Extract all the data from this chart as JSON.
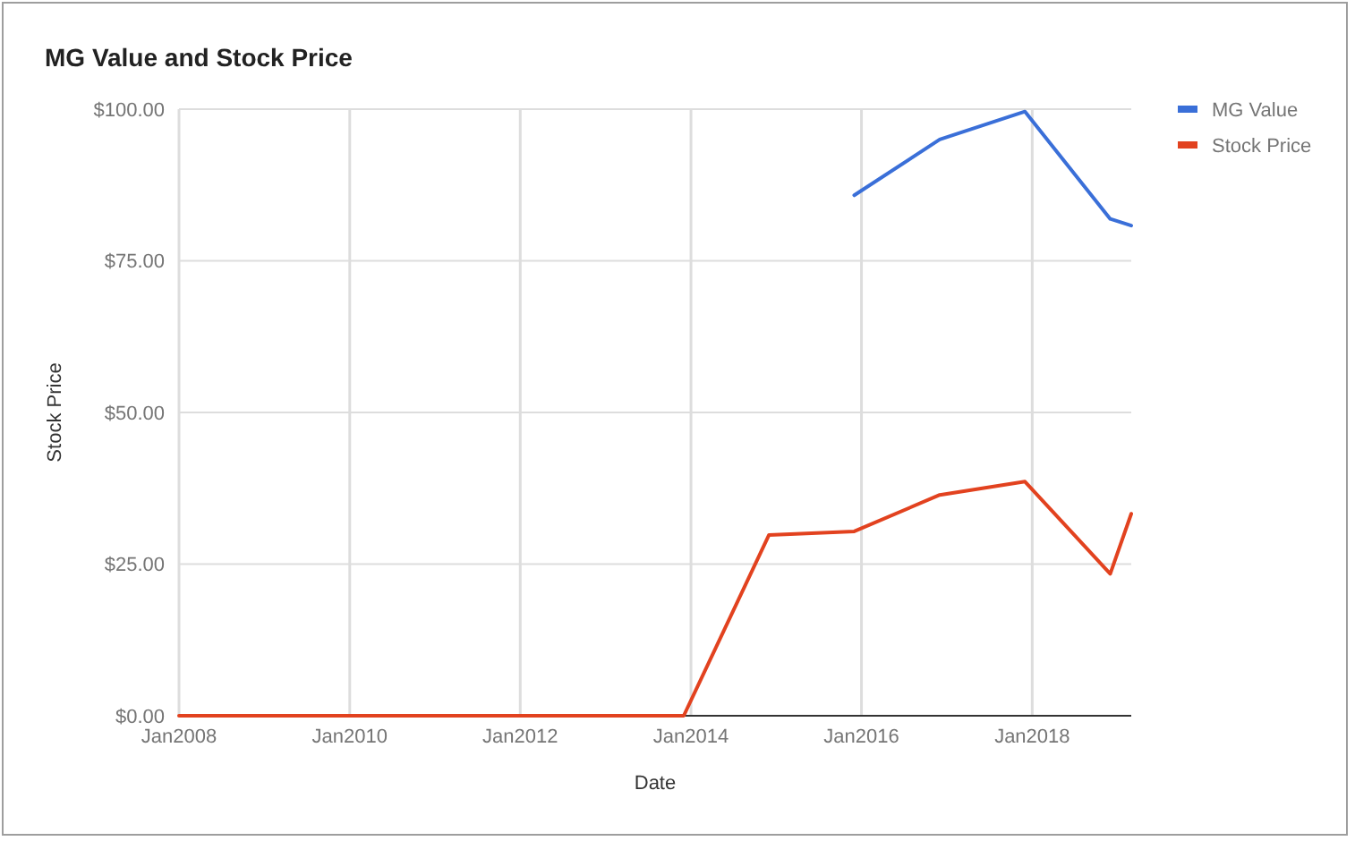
{
  "chart_data": {
    "type": "line",
    "title": "MG Value and Stock Price",
    "xlabel": "Date",
    "ylabel": "Stock Price",
    "xlim": [
      "2008-01",
      "2019-03"
    ],
    "xticks": [
      {
        "value": "2008-01",
        "label": "Jan2008"
      },
      {
        "value": "2010-01",
        "label": "Jan2010"
      },
      {
        "value": "2012-01",
        "label": "Jan2012"
      },
      {
        "value": "2014-01",
        "label": "Jan2014"
      },
      {
        "value": "2016-01",
        "label": "Jan2016"
      },
      {
        "value": "2018-01",
        "label": "Jan2018"
      }
    ],
    "ylim": [
      0,
      100
    ],
    "yticks": [
      {
        "value": 0,
        "label": "$0.00"
      },
      {
        "value": 25,
        "label": "$25.00"
      },
      {
        "value": 50,
        "label": "$50.00"
      },
      {
        "value": 75,
        "label": "$75.00"
      },
      {
        "value": 100,
        "label": "$100.00"
      }
    ],
    "grid": true,
    "legend": "top right",
    "series": [
      {
        "name": "MG Value",
        "color": "#3a6fd8",
        "x": [
          "2015-12",
          "2016-12",
          "2017-12",
          "2018-12",
          "2019-03"
        ],
        "values": [
          85.8,
          95.0,
          99.6,
          81.9,
          80.8
        ]
      },
      {
        "name": "Stock Price",
        "color": "#e2421f",
        "x": [
          "2008-01",
          "2013-12",
          "2014-12",
          "2015-12",
          "2016-12",
          "2017-12",
          "2018-12",
          "2019-03"
        ],
        "values": [
          0,
          0,
          29.8,
          30.4,
          36.4,
          38.6,
          23.4,
          33.3
        ]
      }
    ]
  }
}
